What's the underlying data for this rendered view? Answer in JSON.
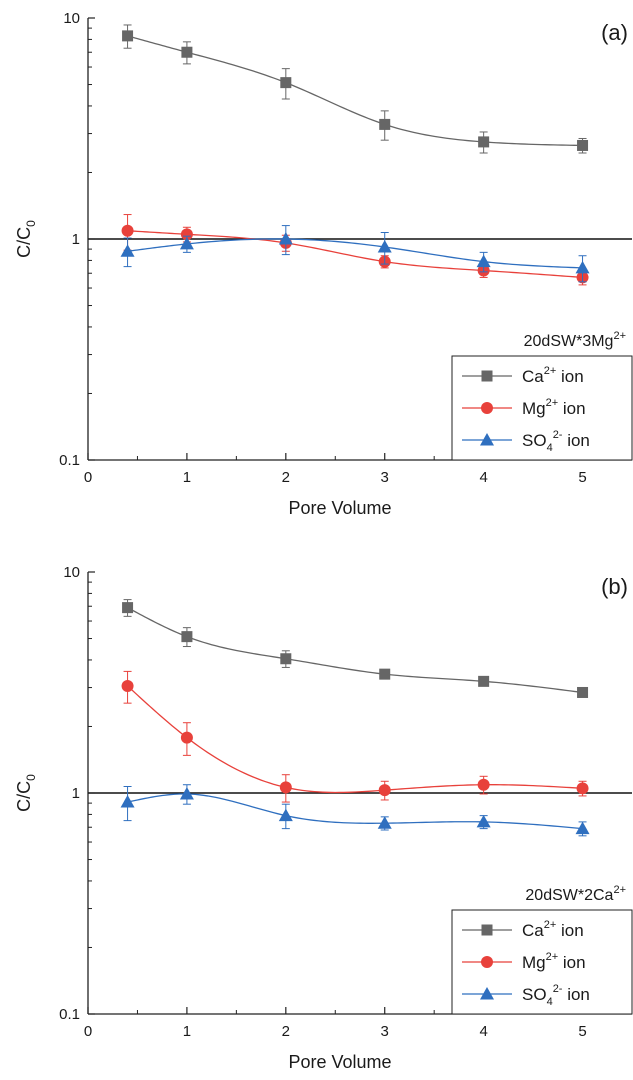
{
  "chart_data": [
    {
      "type": "scatter",
      "panel_label": "(a)",
      "xlabel": "Pore Volume",
      "ylabel": "C/C",
      "ylabel_sub": "0",
      "xlim": [
        0,
        5.5
      ],
      "ylim": [
        0.1,
        10
      ],
      "yscale": "log",
      "x_ticks": [
        0,
        1,
        2,
        3,
        4,
        5
      ],
      "y_ticks": [
        0.1,
        1,
        10
      ],
      "x_tick_labels": [
        "0",
        "1",
        "2",
        "3",
        "4",
        "5"
      ],
      "y_tick_labels": [
        "0.1",
        "1",
        "10"
      ],
      "reference_line": 1,
      "legend_title": {
        "base": "20dSW*3Mg",
        "sup": "2+"
      },
      "legend_position": "bottom-right",
      "series": [
        {
          "name": "Ca2+ ion",
          "label_parts": {
            "base": "Ca",
            "sup": "2+",
            "sub": "",
            "tail": " ion"
          },
          "marker": "square",
          "color": "#666666",
          "x": [
            0.4,
            1,
            2,
            3,
            4,
            5
          ],
          "y": [
            8.3,
            7.0,
            5.1,
            3.3,
            2.75,
            2.65
          ],
          "err": [
            1.0,
            0.8,
            0.8,
            0.5,
            0.3,
            0.2
          ]
        },
        {
          "name": "Mg2+ ion",
          "label_parts": {
            "base": "Mg",
            "sup": "2+",
            "sub": "",
            "tail": " ion"
          },
          "marker": "circle",
          "color": "#e8413b",
          "x": [
            0.4,
            1,
            2,
            3,
            4,
            5
          ],
          "y": [
            1.09,
            1.05,
            0.96,
            0.79,
            0.72,
            0.67
          ],
          "err": [
            0.2,
            0.08,
            0.08,
            0.05,
            0.05,
            0.05
          ]
        },
        {
          "name": "SO42- ion",
          "label_parts": {
            "base": "SO",
            "sup": "2-",
            "sub": "4",
            "tail": " ion"
          },
          "marker": "triangle",
          "color": "#2f6fbf",
          "x": [
            0.4,
            1,
            2,
            3,
            4,
            5
          ],
          "y": [
            0.88,
            0.95,
            1.0,
            0.92,
            0.79,
            0.74
          ],
          "err": [
            0.13,
            0.08,
            0.15,
            0.15,
            0.08,
            0.1
          ]
        }
      ]
    },
    {
      "type": "scatter",
      "panel_label": "(b)",
      "xlabel": "Pore Volume",
      "ylabel": "C/C",
      "ylabel_sub": "0",
      "xlim": [
        0,
        5.5
      ],
      "ylim": [
        0.1,
        10
      ],
      "yscale": "log",
      "x_ticks": [
        0,
        1,
        2,
        3,
        4,
        5
      ],
      "y_ticks": [
        0.1,
        1,
        10
      ],
      "x_tick_labels": [
        "0",
        "1",
        "2",
        "3",
        "4",
        "5"
      ],
      "y_tick_labels": [
        "0.1",
        "1",
        "10"
      ],
      "reference_line": 1,
      "legend_title": {
        "base": "20dSW*2Ca",
        "sup": "2+"
      },
      "legend_position": "bottom-right",
      "series": [
        {
          "name": "Ca2+ ion",
          "label_parts": {
            "base": "Ca",
            "sup": "2+",
            "sub": "",
            "tail": " ion"
          },
          "marker": "square",
          "color": "#666666",
          "x": [
            0.4,
            1,
            2,
            3,
            4,
            5
          ],
          "y": [
            6.9,
            5.1,
            4.05,
            3.45,
            3.2,
            2.85
          ],
          "err": [
            0.6,
            0.5,
            0.35,
            0.1,
            0.1,
            0.1
          ]
        },
        {
          "name": "Mg2+ ion",
          "label_parts": {
            "base": "Mg",
            "sup": "2+",
            "sub": "",
            "tail": " ion"
          },
          "marker": "circle",
          "color": "#e8413b",
          "x": [
            0.4,
            1,
            2,
            3,
            4,
            5
          ],
          "y": [
            3.05,
            1.78,
            1.06,
            1.03,
            1.09,
            1.05
          ],
          "err": [
            0.5,
            0.3,
            0.15,
            0.1,
            0.1,
            0.08
          ]
        },
        {
          "name": "SO42- ion",
          "label_parts": {
            "base": "SO",
            "sup": "2-",
            "sub": "4",
            "tail": " ion"
          },
          "marker": "triangle",
          "color": "#2f6fbf",
          "x": [
            0.4,
            1,
            2,
            3,
            4,
            5
          ],
          "y": [
            0.91,
            0.99,
            0.79,
            0.73,
            0.74,
            0.69
          ],
          "err": [
            0.16,
            0.1,
            0.1,
            0.05,
            0.05,
            0.05
          ]
        }
      ]
    }
  ]
}
